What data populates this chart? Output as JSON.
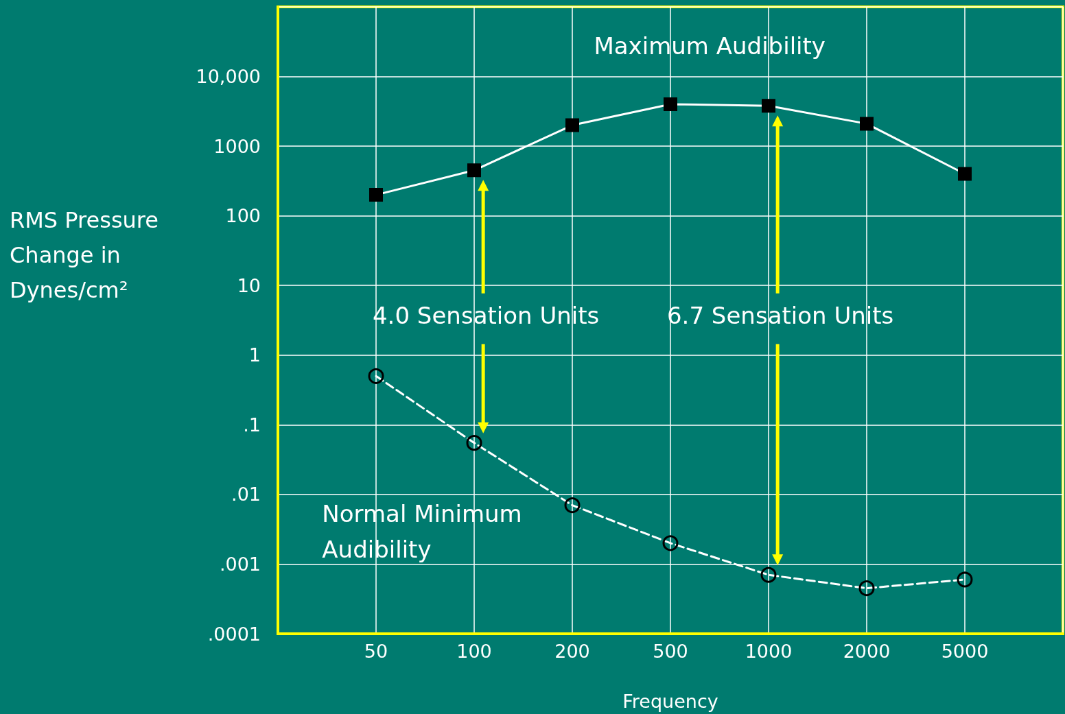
{
  "chart_data": {
    "type": "line",
    "ylabel": "RMS Pressure Change in Dynes/cm²",
    "xlabel": "Frequency",
    "categories": [
      "50",
      "100",
      "200",
      "500",
      "1000",
      "2000",
      "5000"
    ],
    "series": [
      {
        "name": "Maximum Audibility",
        "color": "#ffffff",
        "values": [
          200,
          450,
          2000,
          4000,
          3800,
          2100,
          400
        ],
        "marker": "square",
        "line_style": "solid"
      },
      {
        "name": "Normal Minimum Audibility",
        "color": "#ffffff",
        "values": [
          0.5,
          0.055,
          0.007,
          0.002,
          0.0007,
          0.00045,
          0.0006
        ],
        "marker": "circle",
        "line_style": "dashed"
      }
    ],
    "log": "y",
    "ylim": [
      0.0001,
      100000
    ],
    "yticks": [
      {
        "value": 0.0001,
        "label": ".0001"
      },
      {
        "value": 0.001,
        "label": ".001"
      },
      {
        "value": 0.01,
        "label": ".01"
      },
      {
        "value": 0.1,
        "label": ".1"
      },
      1,
      10,
      100,
      1000,
      {
        "value": 10000,
        "label": "10,000"
      }
    ],
    "annotations": [
      "4.0 Sensation Units",
      "6.7 Sensation Units"
    ],
    "grid": true,
    "legend": false
  }
}
